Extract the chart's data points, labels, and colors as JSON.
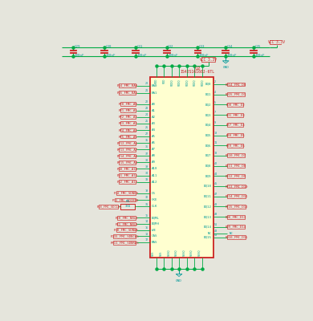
{
  "bg_color": "#e5e5dc",
  "schematic_bg": "#ffffd0",
  "wire_color": "#00aa44",
  "component_color": "#cc2222",
  "text_color": "#009999",
  "label_color": "#cc2222",
  "vcc_color": "#cc2222",
  "gnd_color": "#009999",
  "caps": [
    "C29",
    "C30",
    "C31",
    "C32",
    "C33",
    "C34",
    "C35"
  ],
  "cap_value": "100nF",
  "chip_label": "U2",
  "chip_part": "IS42S16160J-6TL",
  "left_pins": [
    {
      "pin": "BA0",
      "net": "PG4_FMC_BA0",
      "num": "20"
    },
    {
      "pin": "BA1",
      "net": "PG5_FMC_BA1",
      "num": "21"
    },
    {
      "pin": "A0",
      "net": "PF0_FMC_A0",
      "num": "22"
    },
    {
      "pin": "A1",
      "net": "PF1_FMC_A1",
      "num": "23"
    },
    {
      "pin": "A2",
      "net": "PF2_FMC_A2",
      "num": "24"
    },
    {
      "pin": "A3",
      "net": "PF3_FMC_A3",
      "num": "25"
    },
    {
      "pin": "A4",
      "net": "PF4_FMC_A4",
      "num": "26"
    },
    {
      "pin": "A5",
      "net": "PF5_FMC_A5",
      "num": "27"
    },
    {
      "pin": "A6",
      "net": "PF12_FMC_A6",
      "num": "35"
    },
    {
      "pin": "A7",
      "net": "PF13_FMC_A7",
      "num": "36"
    },
    {
      "pin": "A8",
      "net": "PF14_FMC_A8",
      "num": "37"
    },
    {
      "pin": "A9",
      "net": "PF15_FMC_A9",
      "num": "38"
    },
    {
      "pin": "A10",
      "net": "PG0_FMC_A10",
      "num": "39"
    },
    {
      "pin": "A11",
      "net": "PG1_FMC_A11",
      "num": "34"
    },
    {
      "pin": "A12",
      "net": "PG2_FMC_A12",
      "num": "33"
    },
    {
      "pin": "CS",
      "net": "PC4_FMC_SDNE0",
      "num": "19"
    },
    {
      "pin": "CKE",
      "net": "PC3_FMC_SDCKE0",
      "num": "32"
    },
    {
      "pin": "CLK",
      "net": "",
      "num": "31"
    },
    {
      "pin": "DQML",
      "net": "PE0_FMC_NBL0",
      "num": "15"
    },
    {
      "pin": "DQMH",
      "net": "PE1_FMC_NBL1",
      "num": "14"
    },
    {
      "pin": "WE",
      "net": "PC0_FMC_SDNWE",
      "num": "16"
    },
    {
      "pin": "CAS",
      "net": "PG15_FMC_SDNCAS",
      "num": "18"
    },
    {
      "pin": "RAS",
      "net": "PF11_FMC_SDNRAS",
      "num": "17"
    }
  ],
  "right_pins": [
    {
      "pin": "DQ0",
      "net": "PD14_FMC_D0",
      "num": "2"
    },
    {
      "pin": "DQ1",
      "net": "PD15_FMC_D1",
      "num": "4"
    },
    {
      "pin": "DQ2",
      "net": "PD0_FMC_D2",
      "num": "5"
    },
    {
      "pin": "DQ3",
      "net": "PD1_FMC_D3",
      "num": "7"
    },
    {
      "pin": "DQ4",
      "net": "PE7_FMC_D4",
      "num": "9"
    },
    {
      "pin": "DQ5",
      "net": "PE8_FMC_D5",
      "num": "10"
    },
    {
      "pin": "DQ6",
      "net": "PE9_FMC_D6",
      "num": "11"
    },
    {
      "pin": "DQ7",
      "net": "PE10_FMC_D7",
      "num": "13"
    },
    {
      "pin": "DQ8",
      "net": "PE11_FMC_D8",
      "num": "42"
    },
    {
      "pin": "DQ9",
      "net": "PE12_FMC_D9",
      "num": "44"
    },
    {
      "pin": "DQ10",
      "net": "PE13_FMC_D10",
      "num": "45"
    },
    {
      "pin": "DQ11",
      "net": "PE14_FMC_D11",
      "num": "47"
    },
    {
      "pin": "DQ12",
      "net": "PE15_FMC_D12",
      "num": "48"
    },
    {
      "pin": "DQ13",
      "net": "PD8_FMC_D13",
      "num": "49"
    },
    {
      "pin": "DQ14",
      "net": "PD9_FMC_D14",
      "num": "51"
    },
    {
      "pin": "DQ15",
      "net": "PD10_FMC_D15",
      "num": "53"
    },
    {
      "pin": "NC",
      "net": "",
      "num": "40"
    }
  ],
  "top_pins": [
    "VDD",
    "VDD",
    "VDDQ",
    "VDDQ",
    "VDDQ",
    "VDDQ",
    "VDDQ"
  ],
  "bot_pins": [
    "VSS",
    "VSS",
    "VSSQ",
    "VSSQ",
    "VSSQ",
    "VSSQ",
    "VSSQ"
  ],
  "r4_label": "R4",
  "r4_value": "33Ω"
}
